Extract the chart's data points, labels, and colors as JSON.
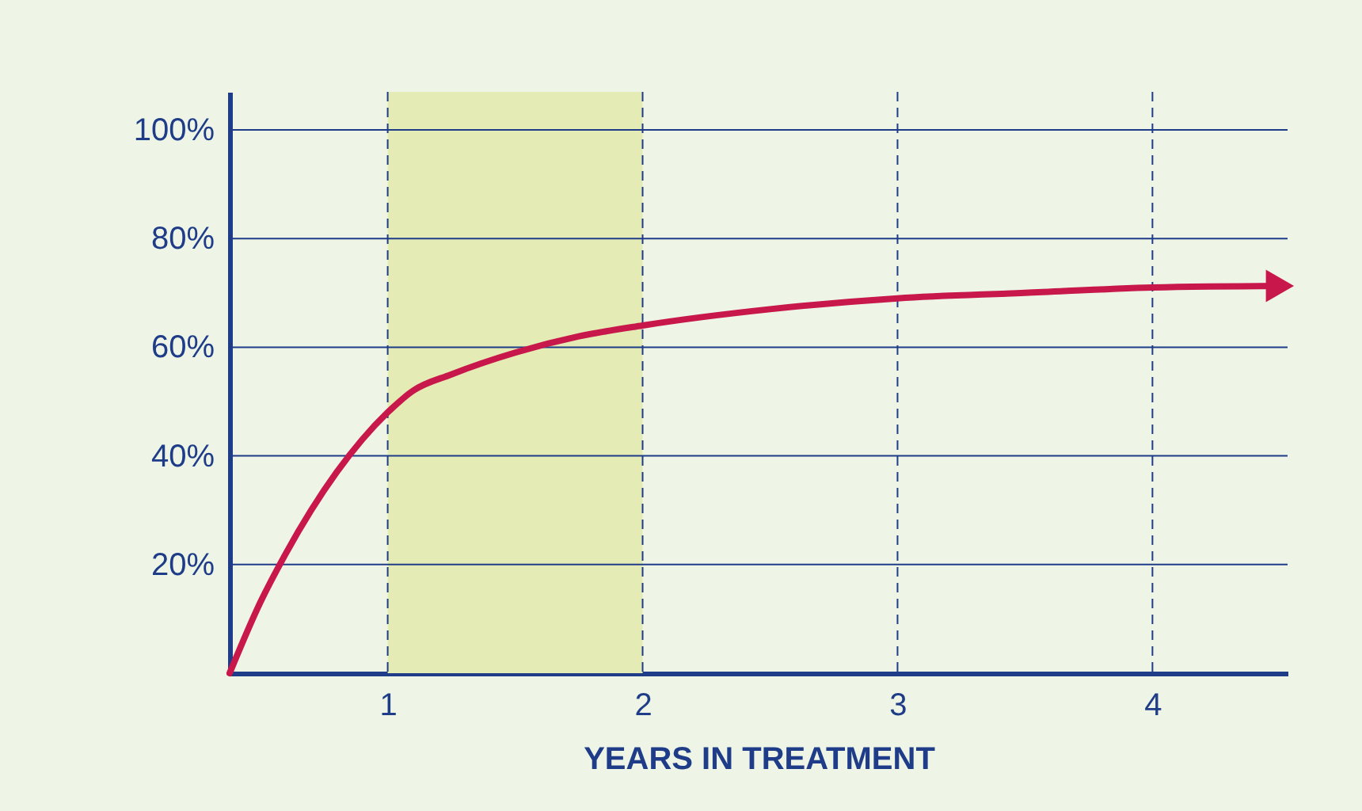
{
  "chart_data": {
    "type": "line",
    "xlabel": "YEARS IN TREATMENT",
    "xlim": [
      0.38,
      4.53
    ],
    "xticks": [
      1,
      2,
      3,
      4
    ],
    "ylim": [
      0,
      107
    ],
    "yticks": [
      {
        "value": 20,
        "label": "20%"
      },
      {
        "value": 40,
        "label": "40%"
      },
      {
        "value": 60,
        "label": "60%"
      },
      {
        "value": 80,
        "label": "80%"
      },
      {
        "value": 100,
        "label": "100%"
      }
    ],
    "grid": true,
    "marker": "none",
    "line_style": "solid",
    "bands": [
      {
        "axis": "x",
        "from": 1,
        "to": 2,
        "color": "#e4ebb4"
      }
    ],
    "series": [
      {
        "color": "#c8174a",
        "x": [
          0.38,
          0.5,
          0.6,
          0.7,
          0.8,
          0.9,
          1.0,
          1.1,
          1.25,
          1.5,
          1.75,
          2.0,
          2.5,
          3.0,
          3.5,
          4.0,
          4.5
        ],
        "values": [
          0,
          13,
          22,
          30,
          37,
          43,
          48,
          52,
          55,
          59,
          62,
          64,
          67,
          69,
          70,
          71,
          71.3
        ]
      }
    ]
  }
}
